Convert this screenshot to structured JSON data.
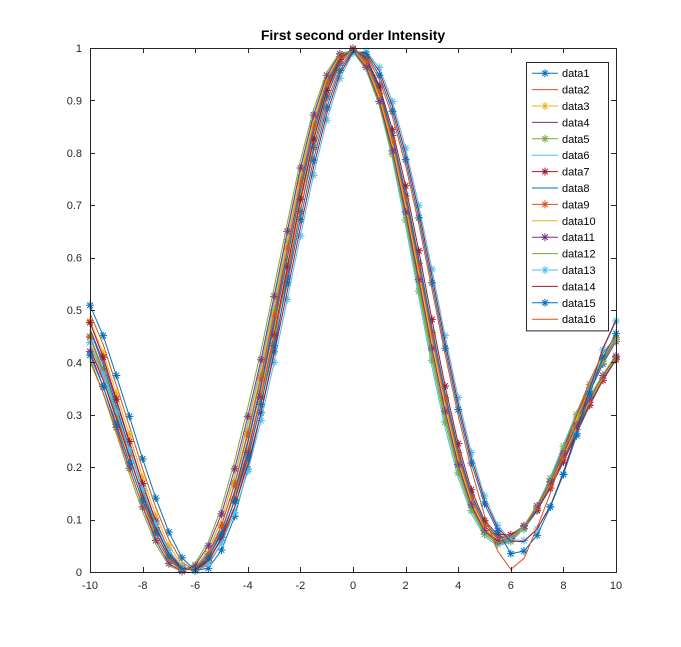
{
  "chart_data": {
    "type": "line",
    "title": "First second order Intensity",
    "xlabel": "",
    "ylabel": "",
    "xlim": [
      -10,
      10
    ],
    "ylim": [
      0,
      1
    ],
    "xticks": [
      -10,
      -8,
      -6,
      -4,
      -2,
      0,
      2,
      4,
      6,
      8,
      10
    ],
    "xtick_labels": [
      "-10",
      "-8",
      "-6",
      "-4",
      "-2",
      "0",
      "2",
      "4",
      "6",
      "8",
      "10"
    ],
    "yticks": [
      0,
      0.1,
      0.2,
      0.3,
      0.4,
      0.5,
      0.6,
      0.7,
      0.8,
      0.9,
      1
    ],
    "ytick_labels": [
      "0",
      "0.1",
      "0.2",
      "0.3",
      "0.4",
      "0.5",
      "0.6",
      "0.7",
      "0.8",
      "0.9",
      "1"
    ],
    "grid": false,
    "legend_position": "top-right",
    "x": [
      -10,
      -9.5,
      -9,
      -8.5,
      -8,
      -7.5,
      -7,
      -6.5,
      -6,
      -5.5,
      -5,
      -4.5,
      -4,
      -3.5,
      -3,
      -2.5,
      -2,
      -1.5,
      -1,
      -0.5,
      0,
      0.5,
      1,
      1.5,
      2,
      2.5,
      3,
      3.5,
      4,
      4.5,
      5,
      5.5,
      6,
      6.5,
      7,
      7.5,
      8,
      8.5,
      9,
      9.5,
      10
    ],
    "series": [
      {
        "name": "data1",
        "color": "#0072BD",
        "marker": "*",
        "values": [
          0.509,
          0.451,
          0.375,
          0.297,
          0.216,
          0.141,
          0.076,
          0.027,
          0.003,
          0.007,
          0.042,
          0.106,
          0.196,
          0.304,
          0.42,
          0.561,
          0.688,
          0.81,
          0.907,
          0.971,
          0.999,
          0.982,
          0.924,
          0.833,
          0.718,
          0.589,
          0.457,
          0.333,
          0.228,
          0.147,
          0.094,
          0.067,
          0.064,
          0.082,
          0.117,
          0.166,
          0.223,
          0.284,
          0.344,
          0.397,
          0.44
        ]
      },
      {
        "name": "data2",
        "color": "#D95319",
        "marker": "",
        "values": [
          0.494,
          0.434,
          0.357,
          0.278,
          0.197,
          0.123,
          0.062,
          0.019,
          0.002,
          0.014,
          0.055,
          0.123,
          0.214,
          0.321,
          0.44,
          0.578,
          0.704,
          0.822,
          0.915,
          0.974,
          0.998,
          0.979,
          0.918,
          0.824,
          0.706,
          0.575,
          0.443,
          0.32,
          0.217,
          0.139,
          0.088,
          0.064,
          0.063,
          0.083,
          0.12,
          0.17,
          0.228,
          0.289,
          0.348,
          0.4,
          0.442
        ]
      },
      {
        "name": "data3",
        "color": "#EDB120",
        "marker": "*",
        "values": [
          0.479,
          0.418,
          0.341,
          0.262,
          0.181,
          0.108,
          0.05,
          0.013,
          0.002,
          0.019,
          0.066,
          0.139,
          0.232,
          0.34,
          0.46,
          0.596,
          0.721,
          0.835,
          0.923,
          0.977,
          0.997,
          0.975,
          0.912,
          0.815,
          0.694,
          0.561,
          0.429,
          0.308,
          0.207,
          0.131,
          0.082,
          0.06,
          0.061,
          0.083,
          0.122,
          0.173,
          0.232,
          0.294,
          0.352,
          0.403,
          0.444
        ]
      },
      {
        "name": "data4",
        "color": "#7E2F8E",
        "marker": "",
        "values": [
          0.464,
          0.402,
          0.325,
          0.247,
          0.167,
          0.096,
          0.04,
          0.008,
          0.003,
          0.025,
          0.077,
          0.155,
          0.25,
          0.358,
          0.48,
          0.613,
          0.737,
          0.847,
          0.931,
          0.98,
          0.996,
          0.971,
          0.905,
          0.806,
          0.683,
          0.548,
          0.416,
          0.297,
          0.198,
          0.124,
          0.077,
          0.056,
          0.059,
          0.083,
          0.124,
          0.176,
          0.236,
          0.298,
          0.355,
          0.405,
          0.446
        ]
      },
      {
        "name": "data5",
        "color": "#77AC30",
        "marker": "*",
        "values": [
          0.45,
          0.387,
          0.311,
          0.233,
          0.155,
          0.085,
          0.032,
          0.005,
          0.005,
          0.032,
          0.089,
          0.17,
          0.268,
          0.377,
          0.499,
          0.63,
          0.752,
          0.858,
          0.938,
          0.983,
          0.995,
          0.967,
          0.898,
          0.797,
          0.672,
          0.536,
          0.404,
          0.286,
          0.189,
          0.117,
          0.072,
          0.053,
          0.058,
          0.083,
          0.126,
          0.179,
          0.24,
          0.301,
          0.358,
          0.407,
          0.447
        ]
      },
      {
        "name": "data6",
        "color": "#4DBEEE",
        "marker": "",
        "values": [
          0.436,
          0.373,
          0.297,
          0.22,
          0.144,
          0.076,
          0.025,
          0.003,
          0.008,
          0.039,
          0.1,
          0.185,
          0.285,
          0.395,
          0.518,
          0.646,
          0.767,
          0.869,
          0.945,
          0.986,
          0.994,
          0.962,
          0.891,
          0.788,
          0.661,
          0.524,
          0.392,
          0.275,
          0.18,
          0.111,
          0.068,
          0.05,
          0.057,
          0.083,
          0.127,
          0.181,
          0.243,
          0.304,
          0.361,
          0.409,
          0.448
        ]
      },
      {
        "name": "data7",
        "color": "#A2142F",
        "marker": "*",
        "values": [
          0.476,
          0.41,
          0.33,
          0.249,
          0.169,
          0.097,
          0.041,
          0.009,
          0.002,
          0.021,
          0.066,
          0.137,
          0.228,
          0.334,
          0.452,
          0.582,
          0.711,
          0.825,
          0.919,
          0.978,
          0.999,
          0.982,
          0.928,
          0.844,
          0.737,
          0.613,
          0.482,
          0.355,
          0.245,
          0.157,
          0.098,
          0.072,
          0.071,
          0.088,
          0.118,
          0.16,
          0.21,
          0.264,
          0.318,
          0.366,
          0.405
        ]
      },
      {
        "name": "data8",
        "color": "#0072BD",
        "marker": "",
        "values": [
          0.462,
          0.395,
          0.316,
          0.236,
          0.157,
          0.087,
          0.034,
          0.006,
          0.004,
          0.028,
          0.077,
          0.152,
          0.246,
          0.352,
          0.471,
          0.6,
          0.727,
          0.838,
          0.927,
          0.981,
          0.998,
          0.978,
          0.921,
          0.834,
          0.724,
          0.598,
          0.467,
          0.342,
          0.234,
          0.149,
          0.093,
          0.068,
          0.069,
          0.088,
          0.12,
          0.163,
          0.214,
          0.268,
          0.321,
          0.368,
          0.407
        ]
      },
      {
        "name": "data9",
        "color": "#D95319",
        "marker": "*",
        "values": [
          0.448,
          0.381,
          0.302,
          0.223,
          0.145,
          0.077,
          0.027,
          0.004,
          0.006,
          0.035,
          0.089,
          0.167,
          0.263,
          0.37,
          0.49,
          0.617,
          0.742,
          0.85,
          0.934,
          0.984,
          0.997,
          0.973,
          0.914,
          0.824,
          0.711,
          0.584,
          0.453,
          0.33,
          0.224,
          0.142,
          0.088,
          0.065,
          0.067,
          0.088,
          0.122,
          0.166,
          0.218,
          0.272,
          0.324,
          0.37,
          0.409
        ]
      },
      {
        "name": "data10",
        "color": "#EDB120",
        "marker": "",
        "values": [
          0.434,
          0.367,
          0.289,
          0.21,
          0.134,
          0.068,
          0.021,
          0.002,
          0.009,
          0.042,
          0.1,
          0.182,
          0.28,
          0.388,
          0.508,
          0.634,
          0.757,
          0.861,
          0.941,
          0.987,
          0.996,
          0.968,
          0.906,
          0.814,
          0.699,
          0.571,
          0.44,
          0.318,
          0.214,
          0.135,
          0.083,
          0.062,
          0.066,
          0.088,
          0.124,
          0.169,
          0.222,
          0.276,
          0.327,
          0.372,
          0.41
        ]
      },
      {
        "name": "data11",
        "color": "#7E2F8E",
        "marker": "*",
        "values": [
          0.421,
          0.354,
          0.276,
          0.198,
          0.124,
          0.06,
          0.016,
          0.001,
          0.013,
          0.05,
          0.111,
          0.197,
          0.297,
          0.405,
          0.526,
          0.65,
          0.771,
          0.872,
          0.948,
          0.989,
          0.995,
          0.963,
          0.898,
          0.804,
          0.687,
          0.558,
          0.427,
          0.307,
          0.205,
          0.128,
          0.079,
          0.059,
          0.064,
          0.088,
          0.126,
          0.172,
          0.226,
          0.28,
          0.331,
          0.375,
          0.412
        ]
      },
      {
        "name": "data12",
        "color": "#77AC30",
        "marker": "",
        "values": [
          0.408,
          0.341,
          0.264,
          0.187,
          0.115,
          0.053,
          0.012,
          0.001,
          0.017,
          0.058,
          0.123,
          0.212,
          0.314,
          0.422,
          0.543,
          0.666,
          0.785,
          0.882,
          0.954,
          0.991,
          0.993,
          0.958,
          0.89,
          0.793,
          0.675,
          0.545,
          0.415,
          0.296,
          0.196,
          0.122,
          0.075,
          0.056,
          0.063,
          0.088,
          0.128,
          0.175,
          0.23,
          0.284,
          0.334,
          0.377,
          0.414
        ]
      },
      {
        "name": "data13",
        "color": "#4DBEEE",
        "marker": "*",
        "values": [
          0.438,
          0.378,
          0.306,
          0.232,
          0.158,
          0.092,
          0.041,
          0.01,
          0.002,
          0.017,
          0.055,
          0.113,
          0.192,
          0.289,
          0.4,
          0.52,
          0.641,
          0.757,
          0.862,
          0.942,
          0.99,
          0.993,
          0.963,
          0.898,
          0.809,
          0.7,
          0.578,
          0.451,
          0.333,
          0.228,
          0.145,
          0.089,
          0.062,
          0.06,
          0.082,
          0.125,
          0.187,
          0.263,
          0.345,
          0.424,
          0.479
        ]
      },
      {
        "name": "data14",
        "color": "#A2142F",
        "marker": "",
        "values": [
          0.426,
          0.366,
          0.294,
          0.22,
          0.147,
          0.083,
          0.035,
          0.007,
          0.003,
          0.022,
          0.063,
          0.124,
          0.205,
          0.304,
          0.416,
          0.536,
          0.657,
          0.772,
          0.874,
          0.95,
          0.993,
          0.991,
          0.956,
          0.889,
          0.798,
          0.688,
          0.565,
          0.439,
          0.321,
          0.218,
          0.138,
          0.084,
          0.059,
          0.058,
          0.082,
          0.126,
          0.19,
          0.267,
          0.349,
          0.427,
          0.481
        ]
      },
      {
        "name": "data15",
        "color": "#0072BD",
        "marker": "*",
        "values": [
          0.414,
          0.354,
          0.282,
          0.208,
          0.136,
          0.074,
          0.029,
          0.004,
          0.005,
          0.028,
          0.072,
          0.136,
          0.219,
          0.32,
          0.432,
          0.552,
          0.673,
          0.786,
          0.886,
          0.957,
          0.995,
          0.988,
          0.948,
          0.879,
          0.787,
          0.676,
          0.552,
          0.427,
          0.31,
          0.208,
          0.13,
          0.079,
          0.035,
          0.04,
          0.07,
          0.124,
          0.186,
          0.26,
          0.34,
          0.41,
          0.455
        ]
      },
      {
        "name": "data16",
        "color": "#D95319",
        "marker": "",
        "values": [
          0.402,
          0.342,
          0.27,
          0.196,
          0.126,
          0.066,
          0.023,
          0.002,
          0.008,
          0.034,
          0.081,
          0.148,
          0.233,
          0.335,
          0.448,
          0.568,
          0.689,
          0.8,
          0.896,
          0.964,
          0.997,
          0.985,
          0.94,
          0.869,
          0.776,
          0.664,
          0.54,
          0.415,
          0.298,
          0.196,
          0.108,
          0.04,
          0.005,
          0.026,
          0.085,
          0.15,
          0.226,
          0.3,
          0.365,
          0.417,
          0.45
        ]
      }
    ]
  }
}
